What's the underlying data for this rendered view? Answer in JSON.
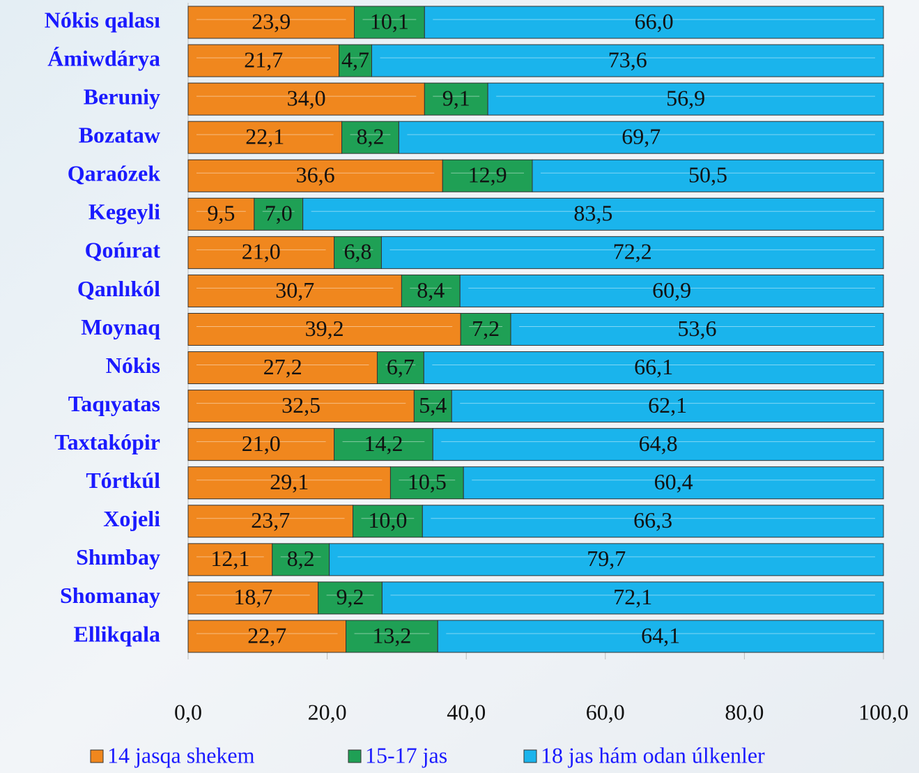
{
  "chart_data": {
    "type": "stacked-barh",
    "categories": [
      "Nókis qalası",
      "Ámiwdárya",
      "Beruniy",
      "Bozataw",
      "Qaraózek",
      "Kegeyli",
      "Qońırat",
      "Qanlıkól",
      "Moynaq",
      "Nókis",
      "Taqıyatas",
      "Taxtakópir",
      "Tórtkúl",
      "Xojeli",
      "Shımbay",
      "Shomanay",
      "Ellikqala"
    ],
    "series": [
      {
        "name": "14 jasqa shekem",
        "color": "#f0871e",
        "values": [
          23.9,
          21.7,
          34.0,
          22.1,
          36.6,
          9.5,
          21.0,
          30.7,
          39.2,
          27.2,
          32.5,
          21.0,
          29.1,
          23.7,
          12.1,
          18.7,
          22.7
        ],
        "value_labels": [
          "23,9",
          "21,7",
          "34,0",
          "22,1",
          "36,6",
          "9,5",
          "21,0",
          "30,7",
          "39,2",
          "27,2",
          "32,5",
          "21,0",
          "29,1",
          "23,7",
          "12,1",
          "18,7",
          "22,7"
        ]
      },
      {
        "name": "15-17 jas",
        "color": "#1fa055",
        "values": [
          10.1,
          4.7,
          9.1,
          8.2,
          12.9,
          7.0,
          6.8,
          8.4,
          7.2,
          6.7,
          5.4,
          14.2,
          10.5,
          10.0,
          8.2,
          9.2,
          13.2
        ],
        "value_labels": [
          "10,1",
          "4,7",
          "9,1",
          "8,2",
          "12,9",
          "7,0",
          "6,8",
          "8,4",
          "7,2",
          "6,7",
          "5,4",
          "14,2",
          "10,5",
          "10,0",
          "8,2",
          "9,2",
          "13,2"
        ]
      },
      {
        "name": "18 jas hám odan úlkenler",
        "color": "#1ab4ec",
        "values": [
          66.0,
          73.6,
          56.9,
          69.7,
          50.5,
          83.5,
          72.2,
          60.9,
          53.6,
          66.1,
          62.1,
          64.8,
          60.4,
          66.3,
          79.7,
          72.1,
          64.1
        ],
        "value_labels": [
          "66,0",
          "73,6",
          "56,9",
          "69,7",
          "50,5",
          "83,5",
          "72,2",
          "60,9",
          "53,6",
          "66,1",
          "62,1",
          "64,8",
          "60,4",
          "66,3",
          "79,7",
          "72,1",
          "64,1"
        ]
      }
    ],
    "xlim": [
      0,
      100
    ],
    "xticks": [
      {
        "value": 0,
        "label": "0,0"
      },
      {
        "value": 20,
        "label": "20,0"
      },
      {
        "value": 40,
        "label": "40,0"
      },
      {
        "value": 60,
        "label": "60,0"
      },
      {
        "value": 80,
        "label": "80,0"
      },
      {
        "value": 100,
        "label": "100,0"
      }
    ]
  }
}
